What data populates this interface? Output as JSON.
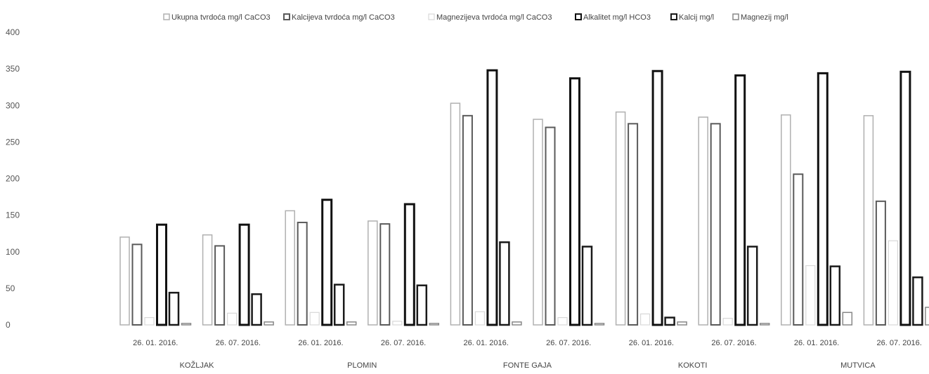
{
  "chart_data": {
    "type": "bar",
    "title": "",
    "xlabel": "",
    "ylabel": "",
    "ylim": [
      0,
      400
    ],
    "yticks": [
      0,
      50,
      100,
      150,
      200,
      250,
      300,
      350,
      400
    ],
    "grid": false,
    "legend_position": "top",
    "groups": [
      {
        "site": "KOŽLJAK",
        "dates": [
          "26. 01. 2016.",
          "26. 07. 2016."
        ]
      },
      {
        "site": "PLOMIN",
        "dates": [
          "26. 01. 2016.",
          "26. 07. 2016."
        ]
      },
      {
        "site": "FONTE GAJA",
        "dates": [
          "26. 01. 2016.",
          "26. 07. 2016."
        ]
      },
      {
        "site": "KOKOTI",
        "dates": [
          "26. 01. 2016.",
          "26. 07. 2016."
        ]
      },
      {
        "site": "MUTVICA",
        "dates": [
          "26. 01. 2016.",
          "26. 07. 2016."
        ]
      }
    ],
    "series": [
      {
        "name": "Ukupna tvrdoća mg/l CaCO3",
        "color": "#b0b0b0",
        "thickness": 1.5,
        "values": [
          120,
          123,
          156,
          142,
          303,
          281,
          291,
          284,
          287,
          286
        ]
      },
      {
        "name": "Kalcijeva tvrdoća mg/l CaCO3",
        "color": "#5a5a5a",
        "thickness": 2,
        "values": [
          110,
          108,
          140,
          138,
          286,
          270,
          275,
          275,
          206,
          169
        ]
      },
      {
        "name": "Magnezijeva tvrdoća mg/l CaCO3",
        "color": "#d8d8d8",
        "thickness": 1.2,
        "values": [
          10,
          16,
          17,
          5,
          18,
          10,
          15,
          9,
          81,
          115
        ]
      },
      {
        "name": "Alkalitet mg/l HCO3",
        "color": "#111111",
        "thickness": 3,
        "values": [
          137,
          137,
          171,
          165,
          348,
          337,
          347,
          341,
          344,
          346
        ]
      },
      {
        "name": "Kalcij mg/l",
        "color": "#1a1a1a",
        "thickness": 2.5,
        "values": [
          44,
          42,
          55,
          54,
          113,
          107,
          10,
          107,
          80,
          65
        ]
      },
      {
        "name": "Magnezij mg/l",
        "color": "#888888",
        "thickness": 1.5,
        "values": [
          2,
          4,
          4,
          2,
          4,
          2,
          4,
          2,
          17,
          24
        ]
      }
    ]
  }
}
